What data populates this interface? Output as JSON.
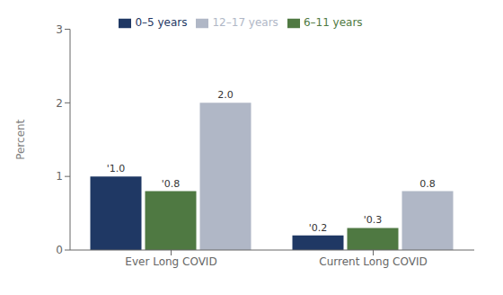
{
  "chart_data": {
    "type": "bar",
    "ylabel": "Percent",
    "categories": [
      "Ever Long COVID",
      "Current Long COVID"
    ],
    "series": [
      {
        "name": "0–5 years",
        "color": "#1f3864",
        "values": [
          1.0,
          0.2
        ],
        "value_labels": [
          "'1.0",
          "'0.2"
        ]
      },
      {
        "name": "6–11 years",
        "color": "#4f7942",
        "values": [
          0.8,
          0.3
        ],
        "value_labels": [
          "'0.8",
          "'0.3"
        ]
      },
      {
        "name": "12–17 years",
        "color": "#b0b7c6",
        "values": [
          2.0,
          0.8
        ],
        "value_labels": [
          "2.0",
          "0.8"
        ]
      }
    ],
    "ylim": [
      0,
      3
    ],
    "yticks": [
      0,
      1,
      2,
      3
    ],
    "grid": false,
    "legend": "top",
    "data_labels": true
  }
}
